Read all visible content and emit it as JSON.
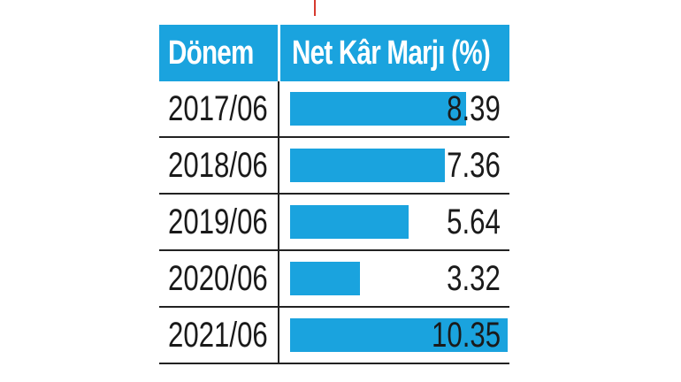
{
  "header": {
    "period_label": "Dönem",
    "margin_label": "Net Kâr Marjı (%)"
  },
  "colors": {
    "accent": "#1aa3de",
    "text": "#1a1a1a",
    "rule": "#222222",
    "red_line": "#d63a2f"
  },
  "chart_data": {
    "type": "bar",
    "orientation": "horizontal",
    "categories": [
      "2017/06",
      "2018/06",
      "2019/06",
      "2020/06",
      "2021/06"
    ],
    "values": [
      8.39,
      7.36,
      5.64,
      3.32,
      10.35
    ],
    "value_labels": [
      "8.39",
      "7.36",
      "5.64",
      "3.32",
      "10.35"
    ],
    "xlabel": "Dönem",
    "ylabel": "Net Kâr Marjı (%)",
    "xlim": [
      0,
      10.35
    ],
    "grid": false
  }
}
